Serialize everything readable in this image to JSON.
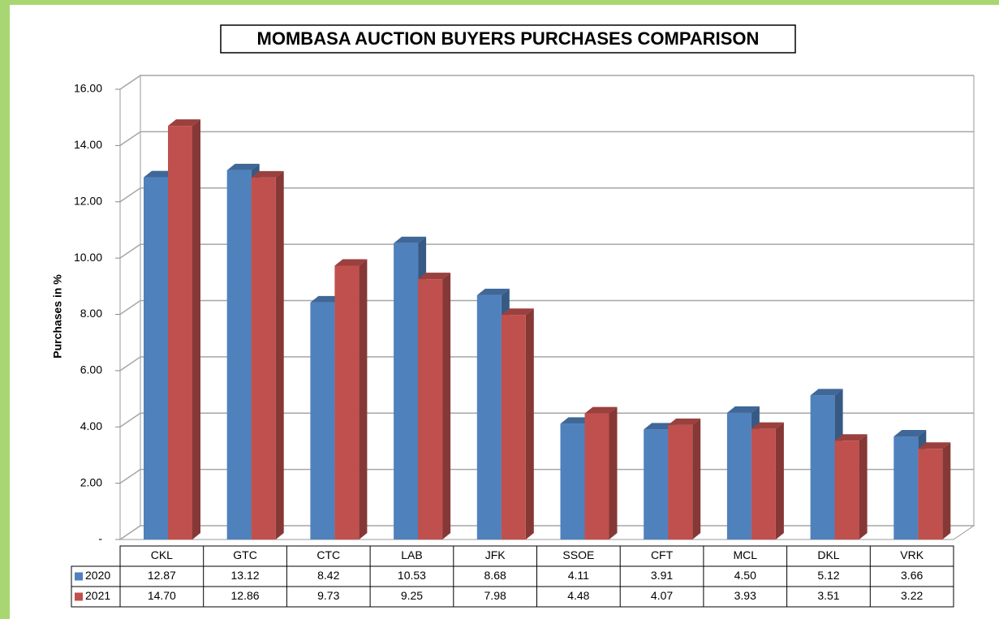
{
  "chart_data": {
    "type": "bar3d",
    "title": "MOMBASA AUCTION BUYERS PURCHASES COMPARISON",
    "y_label": "Purchases in %",
    "categories": [
      "CKL",
      "GTC",
      "CTC",
      "LAB",
      "JFK",
      "SSOE",
      "CFT",
      "MCL",
      "DKL",
      "VRK"
    ],
    "series": [
      {
        "name": "2020",
        "color": "#4f81bd",
        "values": [
          12.87,
          13.12,
          8.42,
          10.53,
          8.68,
          4.11,
          3.91,
          4.5,
          5.12,
          3.66
        ],
        "value_labels": [
          "12.87",
          "13.12",
          "8.42",
          "10.53",
          "8.68",
          "4.11",
          "3.91",
          "4.50",
          "5.12",
          "3.66"
        ]
      },
      {
        "name": "2021",
        "color": "#c0504d",
        "values": [
          14.7,
          12.86,
          9.73,
          9.25,
          7.98,
          4.48,
          4.07,
          3.93,
          3.51,
          3.22
        ],
        "value_labels": [
          "14.70",
          "12.86",
          "9.73",
          "9.25",
          "7.98",
          "4.48",
          "4.07",
          "3.93",
          "3.51",
          "3.22"
        ]
      }
    ],
    "ylim": [
      0,
      16
    ],
    "yticks": [
      {
        "value": 0,
        "label": "-"
      },
      {
        "value": 2,
        "label": "2.00"
      },
      {
        "value": 4,
        "label": "4.00"
      },
      {
        "value": 6,
        "label": "6.00"
      },
      {
        "value": 8,
        "label": "8.00"
      },
      {
        "value": 10,
        "label": "10.00"
      },
      {
        "value": 12,
        "label": "12.00"
      },
      {
        "value": 14,
        "label": "14.00"
      },
      {
        "value": 16,
        "label": "16.00"
      }
    ],
    "grid": true
  }
}
